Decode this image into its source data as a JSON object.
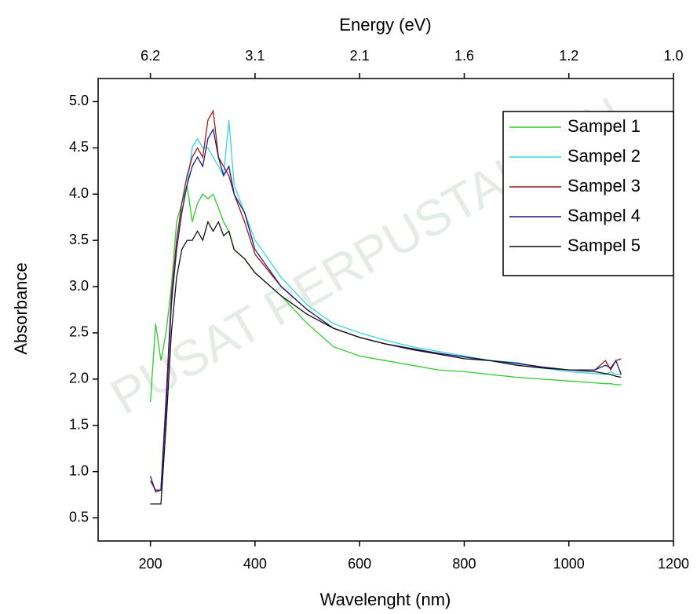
{
  "chart_data": {
    "type": "line",
    "watermark": "PUSAT PERPUSTAKAAN",
    "x_label": "Wavelenght (nm)",
    "y_label": "Absorbance",
    "x2_label": "Energy (eV)",
    "xlim": [
      100,
      1200
    ],
    "ylim": [
      0.25,
      5.25
    ],
    "xticks": [
      200,
      400,
      600,
      800,
      1000,
      1200
    ],
    "yticks": [
      {
        "value": 0.5,
        "label": "0.5"
      },
      {
        "value": 1,
        "label": "1.0"
      },
      {
        "value": 1.5,
        "label": "1.5"
      },
      {
        "value": 2,
        "label": "2.0"
      },
      {
        "value": 2.5,
        "label": "2.5"
      },
      {
        "value": 3,
        "label": "3.0"
      },
      {
        "value": 3.5,
        "label": "3.5"
      },
      {
        "value": 4,
        "label": "4.0"
      },
      {
        "value": 4.5,
        "label": "4.5"
      },
      {
        "value": 5,
        "label": "5.0"
      }
    ],
    "x2ticks": [
      {
        "value": 200,
        "label": "6.2"
      },
      {
        "value": 400,
        "label": "3.1"
      },
      {
        "value": 600,
        "label": "2.1"
      },
      {
        "value": 800,
        "label": "1.6"
      },
      {
        "value": 1000,
        "label": "1.2"
      },
      {
        "value": 1200,
        "label": "1.0"
      }
    ],
    "legend": "upper right",
    "x": [
      200,
      210,
      220,
      230,
      240,
      250,
      260,
      270,
      280,
      290,
      300,
      310,
      320,
      330,
      340,
      350,
      360,
      380,
      400,
      450,
      500,
      550,
      600,
      650,
      700,
      750,
      800,
      850,
      900,
      950,
      1000,
      1050,
      1070,
      1080,
      1090,
      1100
    ],
    "series": [
      {
        "name": "Sampel 1",
        "color": "#2ecc2e",
        "values": [
          1.75,
          2.6,
          2.2,
          2.5,
          3.0,
          3.7,
          3.9,
          4.1,
          3.7,
          3.9,
          4.0,
          3.95,
          4.0,
          3.85,
          3.7,
          3.6,
          3.4,
          3.3,
          3.15,
          2.9,
          2.6,
          2.35,
          2.25,
          2.2,
          2.15,
          2.1,
          2.08,
          2.05,
          2.02,
          2.0,
          1.98,
          1.96,
          1.95,
          1.95,
          1.94,
          1.94
        ]
      },
      {
        "name": "Sampel 2",
        "color": "#33d6e0",
        "values": [
          0.9,
          0.8,
          0.8,
          1.8,
          2.8,
          3.5,
          3.8,
          4.1,
          4.5,
          4.6,
          4.5,
          4.5,
          4.4,
          4.3,
          4.2,
          4.8,
          4.1,
          3.8,
          3.5,
          3.1,
          2.8,
          2.6,
          2.5,
          2.42,
          2.35,
          2.3,
          2.25,
          2.2,
          2.18,
          2.12,
          2.08,
          2.06,
          2.05,
          2.08,
          2.05,
          2.05
        ]
      },
      {
        "name": "Sampel 3",
        "color": "#a01818",
        "values": [
          0.9,
          0.8,
          0.8,
          1.8,
          2.9,
          3.5,
          3.9,
          4.2,
          4.4,
          4.5,
          4.4,
          4.8,
          4.9,
          4.4,
          4.3,
          4.2,
          4.0,
          3.7,
          3.35,
          3.0,
          2.75,
          2.55,
          2.45,
          2.38,
          2.33,
          2.28,
          2.24,
          2.2,
          2.17,
          2.13,
          2.1,
          2.1,
          2.2,
          2.1,
          2.2,
          2.22
        ]
      },
      {
        "name": "Sampel 4",
        "color": "#1a1a80",
        "values": [
          0.95,
          0.78,
          0.8,
          1.7,
          2.8,
          3.4,
          3.8,
          4.1,
          4.3,
          4.4,
          4.3,
          4.6,
          4.7,
          4.4,
          4.2,
          4.3,
          4.0,
          3.8,
          3.4,
          3.0,
          2.75,
          2.55,
          2.45,
          2.38,
          2.33,
          2.28,
          2.24,
          2.2,
          2.17,
          2.13,
          2.1,
          2.1,
          2.15,
          2.12,
          2.2,
          2.05
        ]
      },
      {
        "name": "Sampel 5",
        "color": "#111111",
        "values": [
          0.65,
          0.65,
          0.65,
          1.5,
          2.5,
          3.1,
          3.4,
          3.5,
          3.5,
          3.6,
          3.5,
          3.7,
          3.6,
          3.7,
          3.55,
          3.6,
          3.4,
          3.3,
          3.15,
          2.9,
          2.7,
          2.55,
          2.45,
          2.38,
          2.32,
          2.27,
          2.22,
          2.2,
          2.15,
          2.12,
          2.1,
          2.08,
          2.06,
          2.05,
          2.03,
          2.02
        ]
      }
    ]
  }
}
